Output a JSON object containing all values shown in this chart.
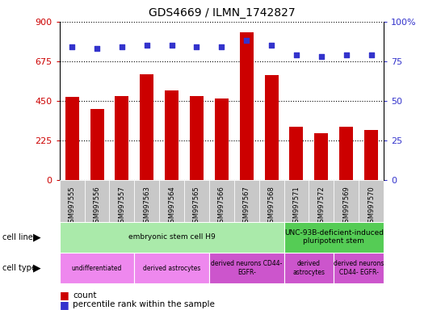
{
  "title": "GDS4669 / ILMN_1742827",
  "samples": [
    "GSM997555",
    "GSM997556",
    "GSM997557",
    "GSM997563",
    "GSM997564",
    "GSM997565",
    "GSM997566",
    "GSM997567",
    "GSM997568",
    "GSM997571",
    "GSM997572",
    "GSM997569",
    "GSM997570"
  ],
  "counts": [
    470,
    405,
    475,
    600,
    510,
    475,
    465,
    840,
    595,
    300,
    265,
    300,
    285
  ],
  "percentiles": [
    84,
    83,
    84,
    85,
    85,
    84,
    84,
    88,
    85,
    79,
    78,
    79,
    79
  ],
  "bar_color": "#cc0000",
  "dot_color": "#3333cc",
  "ylim_left": [
    0,
    900
  ],
  "ylim_right": [
    0,
    100
  ],
  "yticks_left": [
    0,
    225,
    450,
    675,
    900
  ],
  "yticks_right": [
    0,
    25,
    50,
    75,
    100
  ],
  "cell_line_groups": [
    {
      "label": "embryonic stem cell H9",
      "start": 0,
      "end": 9,
      "color": "#aaeaaa"
    },
    {
      "label": "UNC-93B-deficient-induced\npluripotent stem",
      "start": 9,
      "end": 13,
      "color": "#55cc55"
    }
  ],
  "cell_type_groups": [
    {
      "label": "undifferentiated",
      "start": 0,
      "end": 3,
      "color": "#ee88ee"
    },
    {
      "label": "derived astrocytes",
      "start": 3,
      "end": 6,
      "color": "#ee88ee"
    },
    {
      "label": "derived neurons CD44-\nEGFR-",
      "start": 6,
      "end": 9,
      "color": "#cc55cc"
    },
    {
      "label": "derived\nastrocytes",
      "start": 9,
      "end": 11,
      "color": "#cc55cc"
    },
    {
      "label": "derived neurons\nCD44- EGFR-",
      "start": 11,
      "end": 13,
      "color": "#cc55cc"
    }
  ],
  "legend_count_color": "#cc0000",
  "legend_dot_color": "#3333cc",
  "bg_color": "#ffffff",
  "xtick_bg": "#c8c8c8"
}
